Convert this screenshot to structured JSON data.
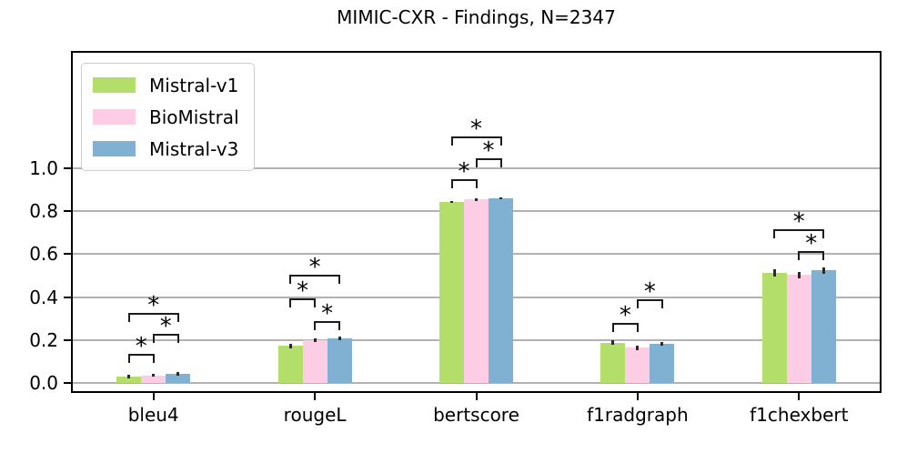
{
  "chart_data": {
    "type": "bar",
    "title": "MIMIC-CXR - Findings, N=2347",
    "categories": [
      "bleu4",
      "rougeL",
      "bertscore",
      "f1radgraph",
      "f1chexbert"
    ],
    "series": [
      {
        "name": "Mistral-v1",
        "color": "#b3de69",
        "values": [
          0.03,
          0.172,
          0.843,
          0.188,
          0.512
        ],
        "errors": [
          0.008,
          0.009,
          0.006,
          0.01,
          0.016
        ]
      },
      {
        "name": "BioMistral",
        "color": "#fccde5",
        "values": [
          0.036,
          0.198,
          0.854,
          0.164,
          0.503
        ],
        "errors": [
          0.008,
          0.009,
          0.006,
          0.01,
          0.016
        ]
      },
      {
        "name": "Mistral-v3",
        "color": "#80b1d3",
        "values": [
          0.044,
          0.207,
          0.86,
          0.182,
          0.524
        ],
        "errors": [
          0.008,
          0.009,
          0.006,
          0.01,
          0.016
        ]
      }
    ],
    "significance_marker": "*",
    "significance": [
      {
        "category": "bleu4",
        "pairs": [
          {
            "a": 0,
            "b": 1,
            "height": 0.135
          },
          {
            "a": 1,
            "b": 2,
            "height": 0.227
          },
          {
            "a": 0,
            "b": 2,
            "height": 0.328
          }
        ]
      },
      {
        "category": "rougeL",
        "pairs": [
          {
            "a": 1,
            "b": 2,
            "height": 0.288
          },
          {
            "a": 0,
            "b": 1,
            "height": 0.395
          },
          {
            "a": 0,
            "b": 2,
            "height": 0.505
          }
        ]
      },
      {
        "category": "bertscore",
        "pairs": [
          {
            "a": 0,
            "b": 1,
            "height": 0.948
          },
          {
            "a": 1,
            "b": 2,
            "height": 1.046
          },
          {
            "a": 0,
            "b": 2,
            "height": 1.15
          }
        ]
      },
      {
        "category": "f1radgraph",
        "pairs": [
          {
            "a": 0,
            "b": 1,
            "height": 0.278
          },
          {
            "a": 1,
            "b": 2,
            "height": 0.388
          }
        ]
      },
      {
        "category": "f1chexbert",
        "pairs": [
          {
            "a": 1,
            "b": 2,
            "height": 0.613
          },
          {
            "a": 0,
            "b": 2,
            "height": 0.718
          }
        ]
      }
    ],
    "ylim": [
      -0.038,
      1.538
    ],
    "ytick_values": [
      0.0,
      0.2,
      0.4,
      0.6,
      0.8,
      1.0
    ],
    "ytick_labels": [
      "0.0",
      "0.2",
      "0.4",
      "0.6",
      "0.8",
      "1.0"
    ],
    "grid": true,
    "legend_position": "upper left",
    "colors": {
      "gridline": "#b2b2b2",
      "spine": "#000000",
      "bracket": "#1c1c1c",
      "errorbar": "#2a2a2a"
    }
  }
}
